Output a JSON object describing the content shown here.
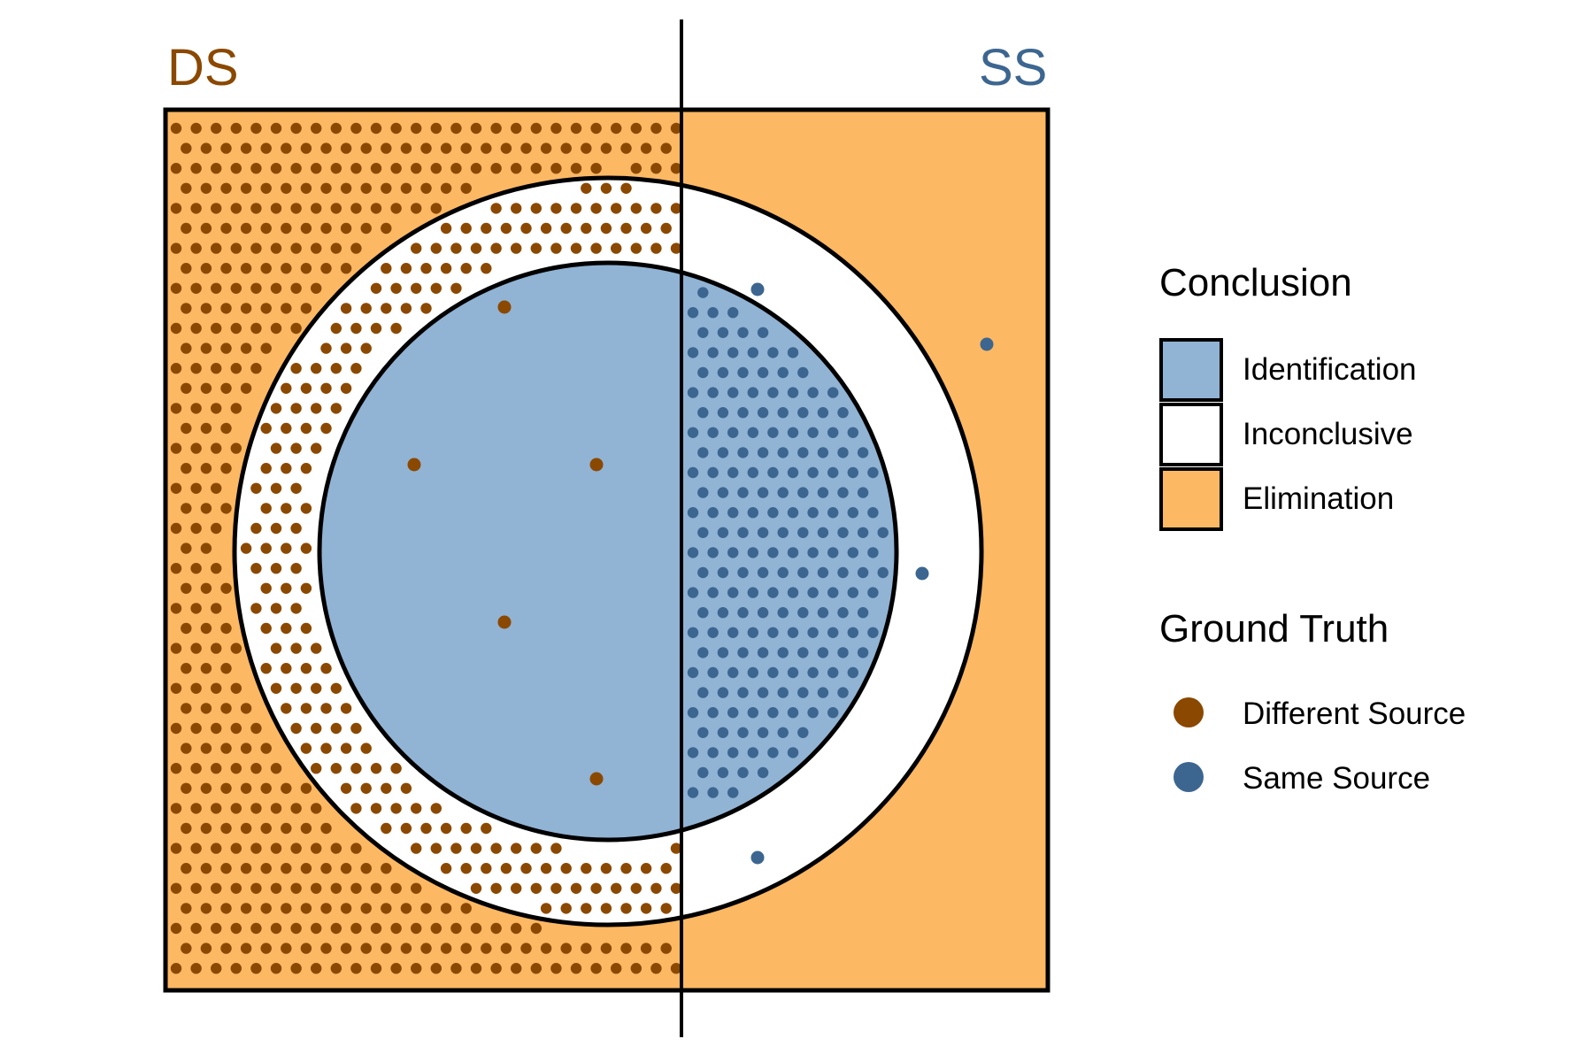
{
  "regions": {
    "left_label": "DS",
    "right_label": "SS"
  },
  "legend": {
    "conclusion": {
      "title": "Conclusion",
      "items": [
        {
          "label": "Identification",
          "color": "#91B3D4"
        },
        {
          "label": "Inconclusive",
          "color": "#FFFFFF"
        },
        {
          "label": "Elimination",
          "color": "#FDB863"
        }
      ]
    },
    "ground_truth": {
      "title": "Ground Truth",
      "items": [
        {
          "label": "Different Source",
          "color": "#8B4800"
        },
        {
          "label": "Same Source",
          "color": "#3C6690"
        }
      ]
    }
  },
  "colors": {
    "different_source": "#8B4800",
    "same_source": "#3C6690",
    "identification": "#91B3D4",
    "inconclusive": "#FFFFFF",
    "elimination": "#FDB863",
    "outline": "#000000"
  }
}
